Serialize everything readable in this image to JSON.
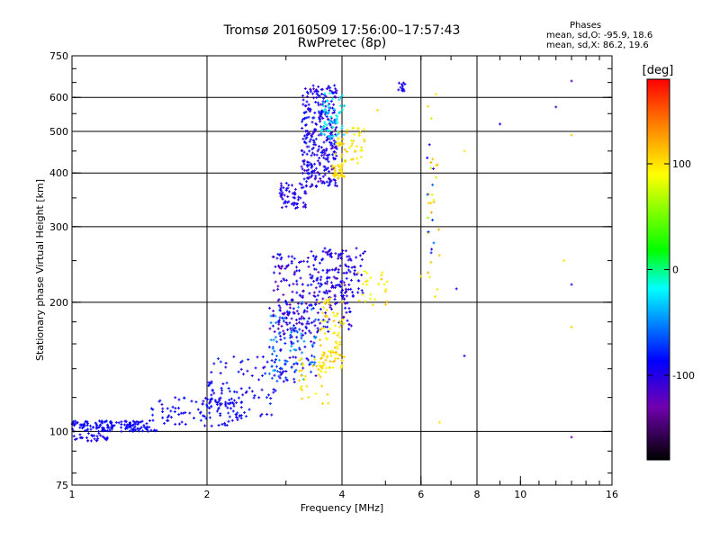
{
  "header": {
    "title": "Tromsø 20160509 17:56:00–17:57:43",
    "subtitle": "RwPretec (8p)"
  },
  "phases": {
    "title": "Phases",
    "line_o": "mean, sd,O: -95.9, 18.6",
    "line_x": "mean, sd,X:  86.2, 19.6"
  },
  "colorbar": {
    "unit": "[deg]",
    "ticks": [
      {
        "value": 100,
        "label": "100"
      },
      {
        "value": 0,
        "label": "0"
      },
      {
        "value": -100,
        "label": "-100"
      }
    ],
    "range": [
      -180,
      180
    ],
    "colors": [
      "#000000",
      "#7000b0",
      "#0000ff",
      "#00ffff",
      "#00ff00",
      "#ffff00",
      "#ff8000",
      "#ff0000"
    ]
  },
  "chart_data": {
    "type": "scatter",
    "xlabel": "Frequency [MHz]",
    "ylabel": "Stationary phase Virtual Height [km]",
    "xscale": "log",
    "yscale": "log",
    "xlim": [
      1,
      16
    ],
    "ylim": [
      75,
      750
    ],
    "xticks": [
      1,
      2,
      4,
      6,
      8,
      10,
      16
    ],
    "yticks": [
      75,
      100,
      200,
      300,
      400,
      500,
      600,
      750
    ],
    "grid_x": [
      2,
      4,
      6,
      8
    ],
    "grid_y": [
      100,
      200,
      300,
      400,
      500,
      600
    ],
    "clusters": [
      {
        "x": [
          1.0,
          1.55
        ],
        "y": [
          100,
          106
        ],
        "n": 140,
        "phase": [
          -100,
          -85
        ]
      },
      {
        "x": [
          1.0,
          1.2
        ],
        "y": [
          95,
          99
        ],
        "n": 30,
        "phase": [
          -105,
          -90
        ]
      },
      {
        "x": [
          1.5,
          2.4
        ],
        "y": [
          103,
          120
        ],
        "n": 100,
        "phase": [
          -105,
          -80
        ]
      },
      {
        "x": [
          2.0,
          2.85
        ],
        "y": [
          108,
          150
        ],
        "n": 90,
        "phase": [
          -110,
          -75
        ]
      },
      {
        "x": [
          2.75,
          3.5
        ],
        "y": [
          130,
          200
        ],
        "n": 170,
        "phase": [
          -120,
          -40
        ]
      },
      {
        "x": [
          2.8,
          4.2
        ],
        "y": [
          170,
          262
        ],
        "n": 230,
        "phase": [
          -130,
          -80
        ]
      },
      {
        "x": [
          3.4,
          4.5
        ],
        "y": [
          205,
          272
        ],
        "n": 90,
        "phase": [
          -110,
          -90
        ]
      },
      {
        "x": [
          3.55,
          4.05
        ],
        "y": [
          140,
          205
        ],
        "n": 90,
        "phase": [
          85,
          115
        ]
      },
      {
        "x": [
          3.2,
          3.8
        ],
        "y": [
          115,
          150
        ],
        "n": 35,
        "phase": [
          90,
          110
        ]
      },
      {
        "x": [
          4.3,
          5.1
        ],
        "y": [
          195,
          240
        ],
        "n": 25,
        "phase": [
          80,
          115
        ]
      },
      {
        "x": [
          2.9,
          3.35
        ],
        "y": [
          330,
          380
        ],
        "n": 60,
        "phase": [
          -115,
          -90
        ]
      },
      {
        "x": [
          3.25,
          3.9
        ],
        "y": [
          370,
          640
        ],
        "n": 330,
        "phase": [
          -120,
          -80
        ]
      },
      {
        "x": [
          3.6,
          4.05
        ],
        "y": [
          470,
          620
        ],
        "n": 60,
        "phase": [
          -40,
          -10
        ]
      },
      {
        "x": [
          3.85,
          4.5
        ],
        "y": [
          420,
          510
        ],
        "n": 50,
        "phase": [
          80,
          115
        ]
      },
      {
        "x": [
          3.8,
          4.05
        ],
        "y": [
          385,
          420
        ],
        "n": 40,
        "phase": [
          95,
          110
        ]
      },
      {
        "x": [
          5.3,
          5.6
        ],
        "y": [
          620,
          650
        ],
        "n": 12,
        "phase": [
          -110,
          -90
        ]
      },
      {
        "x": [
          6.2,
          6.6
        ],
        "y": [
          200,
          620
        ],
        "n": 25,
        "phase": [
          60,
          130
        ]
      },
      {
        "x": [
          6.15,
          6.45
        ],
        "y": [
          250,
          500
        ],
        "n": 10,
        "phase": [
          -120,
          -60
        ]
      }
    ],
    "points": [
      {
        "x": 9.0,
        "y": 520,
        "phase": -100
      },
      {
        "x": 12.0,
        "y": 570,
        "phase": -110
      },
      {
        "x": 13.0,
        "y": 655,
        "phase": -120
      },
      {
        "x": 13.0,
        "y": 490,
        "phase": 110
      },
      {
        "x": 12.5,
        "y": 250,
        "phase": 100
      },
      {
        "x": 13.0,
        "y": 220,
        "phase": -110
      },
      {
        "x": 13.0,
        "y": 175,
        "phase": 105
      },
      {
        "x": 13.0,
        "y": 97,
        "phase": -130
      },
      {
        "x": 7.5,
        "y": 150,
        "phase": -100
      },
      {
        "x": 7.2,
        "y": 215,
        "phase": -100
      },
      {
        "x": 7.5,
        "y": 450,
        "phase": 100
      },
      {
        "x": 6.6,
        "y": 105,
        "phase": 100
      },
      {
        "x": 6.0,
        "y": 230,
        "phase": 100
      },
      {
        "x": 4.8,
        "y": 560,
        "phase": 100
      }
    ]
  }
}
